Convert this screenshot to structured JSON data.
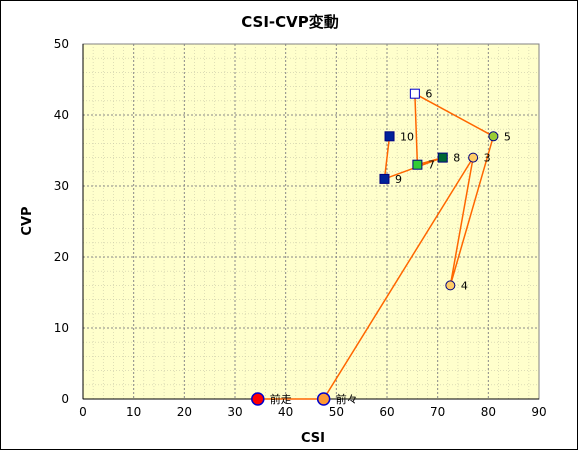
{
  "chart_data": {
    "type": "scatter",
    "title": "CSI-CVP変動",
    "xlabel": "CSI",
    "ylabel": "CVP",
    "xlim": [
      0,
      90
    ],
    "ylim": [
      0,
      50
    ],
    "x_ticks": [
      "0",
      "10",
      "20",
      "30",
      "40",
      "50",
      "60",
      "70",
      "80",
      "90"
    ],
    "y_ticks": [
      "0",
      "10",
      "20",
      "30",
      "40",
      "50"
    ],
    "grid": true,
    "minor_grid": true,
    "plot_background": "#ffffcc",
    "line_color": "#ff6600",
    "points": [
      {
        "label": "前走",
        "x": 34.5,
        "y": 0,
        "marker": "circle-large",
        "fill": "#ff0000",
        "stroke": "#0000cc"
      },
      {
        "label": "前々",
        "x": 47.5,
        "y": 0,
        "marker": "circle-large",
        "fill": "#ff9933",
        "stroke": "#0000cc"
      },
      {
        "label": "3",
        "x": 77,
        "y": 34,
        "marker": "circle",
        "fill": "#ffcc66",
        "stroke": "#000080"
      },
      {
        "label": "4",
        "x": 72.5,
        "y": 16,
        "marker": "circle",
        "fill": "#ffcc66",
        "stroke": "#000080"
      },
      {
        "label": "5",
        "x": 81,
        "y": 37,
        "marker": "circle",
        "fill": "#99cc33",
        "stroke": "#000080"
      },
      {
        "label": "6",
        "x": 65.5,
        "y": 43,
        "marker": "square",
        "fill": "#ffffff",
        "stroke": "#0000cc"
      },
      {
        "label": "7",
        "x": 66,
        "y": 33,
        "marker": "square",
        "fill": "#33cc33",
        "stroke": "#000080"
      },
      {
        "label": "8",
        "x": 71,
        "y": 34,
        "marker": "square",
        "fill": "#006633",
        "stroke": "#000080"
      },
      {
        "label": "9",
        "x": 59.5,
        "y": 31,
        "marker": "square",
        "fill": "#002299",
        "stroke": "#000080"
      },
      {
        "label": "10",
        "x": 60.5,
        "y": 37,
        "marker": "square",
        "fill": "#002299",
        "stroke": "#000080"
      }
    ],
    "path_order": [
      "前走",
      "前々",
      "3",
      "4",
      "5",
      "6",
      "7",
      "8",
      "9",
      "10"
    ]
  }
}
